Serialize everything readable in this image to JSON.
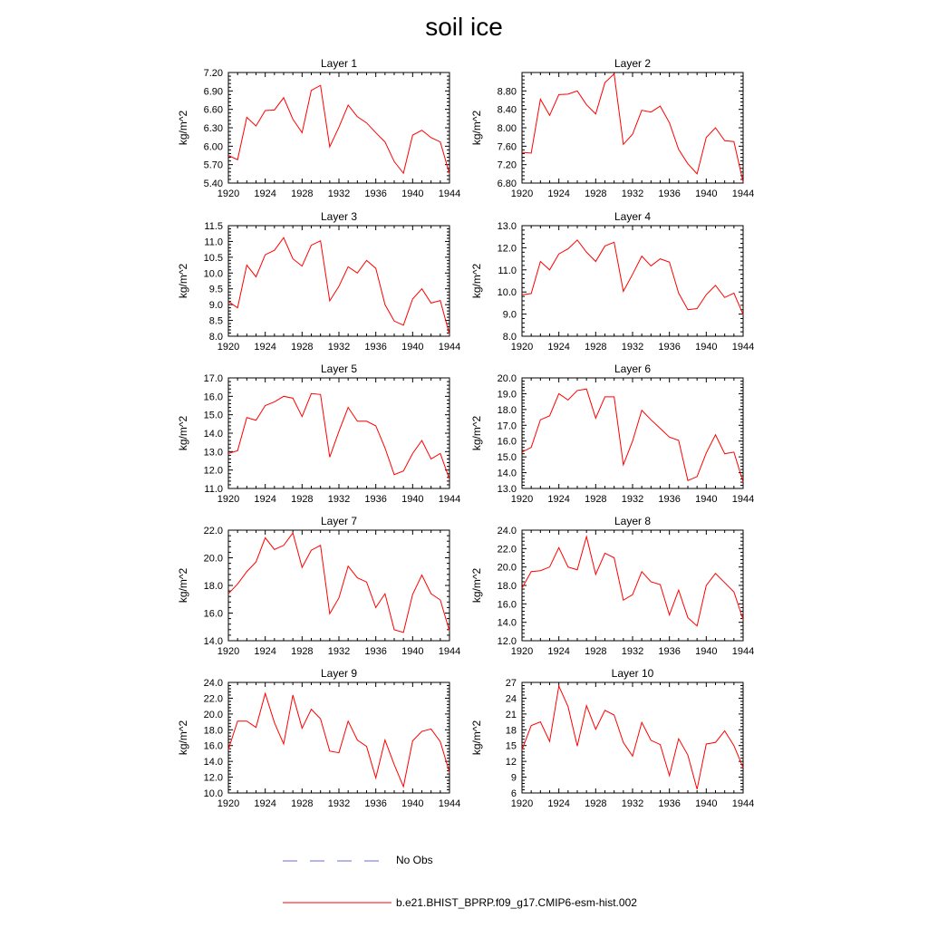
{
  "title": "soil ice",
  "legend": {
    "obs_label": "No Obs",
    "model_label": "b.e21.BHIST_BPRP.f09_g17.CMIP6-esm-hist.002",
    "obs_color": "#6b6bd6",
    "model_color": "#ff0000"
  },
  "chart_data": [
    {
      "type": "line",
      "title": "Layer 1",
      "ylabel": "kg/m^2",
      "xlim": [
        1920,
        1944
      ],
      "ylim": [
        5.4,
        7.2
      ],
      "xticks": [
        "1920",
        "1924",
        "1928",
        "1932",
        "1936",
        "1940",
        "1944"
      ],
      "yticks": [
        "5.40",
        "5.70",
        "6.00",
        "6.30",
        "6.60",
        "6.90",
        "7.20"
      ],
      "ytick_values": [
        5.4,
        5.7,
        6.0,
        6.3,
        6.6,
        6.9,
        7.2
      ],
      "series": [
        {
          "x": [
            1920,
            1921,
            1922,
            1923,
            1924,
            1925,
            1926,
            1927,
            1928,
            1929,
            1930,
            1931,
            1932,
            1933,
            1934,
            1935,
            1936,
            1937,
            1938,
            1939,
            1940,
            1941,
            1942,
            1943,
            1944
          ],
          "y": [
            5.85,
            5.78,
            6.47,
            6.33,
            6.58,
            6.59,
            6.79,
            6.44,
            6.22,
            6.91,
            6.99,
            5.99,
            6.31,
            6.67,
            6.48,
            6.38,
            6.22,
            6.07,
            5.75,
            5.56,
            6.18,
            6.26,
            6.14,
            6.07,
            5.55
          ]
        }
      ]
    },
    {
      "type": "line",
      "title": "Layer 2",
      "ylabel": "kg/m^2",
      "xlim": [
        1920,
        1944
      ],
      "ylim": [
        6.8,
        9.2
      ],
      "xticks": [
        "1920",
        "1924",
        "1928",
        "1932",
        "1936",
        "1940",
        "1944"
      ],
      "yticks": [
        "6.80",
        "7.20",
        "7.60",
        "8.00",
        "8.40",
        "8.80"
      ],
      "ytick_values": [
        6.8,
        7.2,
        7.6,
        8.0,
        8.4,
        8.8
      ],
      "series": [
        {
          "x": [
            1920,
            1921,
            1922,
            1923,
            1924,
            1925,
            1926,
            1927,
            1928,
            1929,
            1930,
            1931,
            1932,
            1933,
            1934,
            1935,
            1936,
            1937,
            1938,
            1939,
            1940,
            1941,
            1942,
            1943,
            1944
          ],
          "y": [
            7.47,
            7.45,
            8.62,
            8.27,
            8.72,
            8.73,
            8.8,
            8.5,
            8.3,
            8.98,
            9.17,
            7.64,
            7.86,
            8.38,
            8.34,
            8.47,
            8.11,
            7.53,
            7.22,
            7.0,
            7.79,
            8.0,
            7.72,
            7.7,
            6.82
          ]
        }
      ]
    },
    {
      "type": "line",
      "title": "Layer 3",
      "ylabel": "kg/m^2",
      "xlim": [
        1920,
        1944
      ],
      "ylim": [
        8.0,
        11.5
      ],
      "xticks": [
        "1920",
        "1924",
        "1928",
        "1932",
        "1936",
        "1940",
        "1944"
      ],
      "yticks": [
        "8.0",
        "8.5",
        "9.0",
        "9.5",
        "10.0",
        "10.5",
        "11.0",
        "11.5"
      ],
      "ytick_values": [
        8.0,
        8.5,
        9.0,
        9.5,
        10.0,
        10.5,
        11.0,
        11.5
      ],
      "series": [
        {
          "x": [
            1920,
            1921,
            1922,
            1923,
            1924,
            1925,
            1926,
            1927,
            1928,
            1929,
            1930,
            1931,
            1932,
            1933,
            1934,
            1935,
            1936,
            1937,
            1938,
            1939,
            1940,
            1941,
            1942,
            1943,
            1944
          ],
          "y": [
            9.1,
            8.9,
            10.25,
            9.88,
            10.58,
            10.72,
            11.12,
            10.45,
            10.22,
            10.88,
            11.02,
            9.12,
            9.58,
            10.2,
            10.0,
            10.4,
            10.15,
            9.0,
            8.48,
            8.35,
            9.18,
            9.5,
            9.05,
            9.13,
            8.05
          ]
        }
      ]
    },
    {
      "type": "line",
      "title": "Layer 4",
      "ylabel": "kg/m^2",
      "xlim": [
        1920,
        1944
      ],
      "ylim": [
        8.0,
        13.0
      ],
      "xticks": [
        "1920",
        "1924",
        "1928",
        "1932",
        "1936",
        "1940",
        "1944"
      ],
      "yticks": [
        "8.0",
        "9.0",
        "10.0",
        "11.0",
        "12.0",
        "13.0"
      ],
      "ytick_values": [
        8.0,
        9.0,
        10.0,
        11.0,
        12.0,
        13.0
      ],
      "series": [
        {
          "x": [
            1920,
            1921,
            1922,
            1923,
            1924,
            1925,
            1926,
            1927,
            1928,
            1929,
            1930,
            1931,
            1932,
            1933,
            1934,
            1935,
            1936,
            1937,
            1938,
            1939,
            1940,
            1941,
            1942,
            1943,
            1944
          ],
          "y": [
            9.87,
            9.93,
            11.38,
            11.0,
            11.72,
            11.95,
            12.35,
            11.8,
            11.38,
            12.08,
            12.25,
            10.03,
            10.8,
            11.62,
            11.18,
            11.5,
            11.35,
            9.95,
            9.2,
            9.25,
            9.88,
            10.3,
            9.75,
            9.95,
            8.98
          ]
        }
      ]
    },
    {
      "type": "line",
      "title": "Layer 5",
      "ylabel": "kg/m^2",
      "xlim": [
        1920,
        1944
      ],
      "ylim": [
        11.0,
        17.0
      ],
      "xticks": [
        "1920",
        "1924",
        "1928",
        "1932",
        "1936",
        "1940",
        "1944"
      ],
      "yticks": [
        "11.0",
        "12.0",
        "13.0",
        "14.0",
        "15.0",
        "16.0",
        "17.0"
      ],
      "ytick_values": [
        11.0,
        12.0,
        13.0,
        14.0,
        15.0,
        16.0,
        17.0
      ],
      "series": [
        {
          "x": [
            1920,
            1921,
            1922,
            1923,
            1924,
            1925,
            1926,
            1927,
            1928,
            1929,
            1930,
            1931,
            1932,
            1933,
            1934,
            1935,
            1936,
            1937,
            1938,
            1939,
            1940,
            1941,
            1942,
            1943,
            1944
          ],
          "y": [
            12.9,
            13.05,
            14.85,
            14.7,
            15.5,
            15.7,
            16.0,
            15.9,
            14.9,
            16.15,
            16.1,
            12.7,
            14.1,
            15.4,
            14.65,
            14.65,
            14.4,
            13.2,
            11.75,
            11.95,
            12.9,
            13.6,
            12.6,
            12.9,
            11.5
          ]
        }
      ]
    },
    {
      "type": "line",
      "title": "Layer 6",
      "ylabel": "kg/m^2",
      "xlim": [
        1920,
        1944
      ],
      "ylim": [
        13.0,
        20.0
      ],
      "xticks": [
        "1920",
        "1924",
        "1928",
        "1932",
        "1936",
        "1940",
        "1944"
      ],
      "yticks": [
        "13.0",
        "14.0",
        "15.0",
        "16.0",
        "17.0",
        "18.0",
        "19.0",
        "20.0"
      ],
      "ytick_values": [
        13.0,
        14.0,
        15.0,
        16.0,
        17.0,
        18.0,
        19.0,
        20.0
      ],
      "series": [
        {
          "x": [
            1920,
            1921,
            1922,
            1923,
            1924,
            1925,
            1926,
            1927,
            1928,
            1929,
            1930,
            1931,
            1932,
            1933,
            1934,
            1935,
            1936,
            1937,
            1938,
            1939,
            1940,
            1941,
            1942,
            1943,
            1944
          ],
          "y": [
            15.3,
            15.6,
            17.35,
            17.6,
            19.0,
            18.6,
            19.2,
            19.3,
            17.45,
            18.8,
            18.8,
            14.5,
            16.0,
            17.95,
            17.35,
            16.8,
            16.25,
            16.05,
            13.5,
            13.75,
            15.25,
            16.4,
            15.2,
            15.3,
            13.4
          ]
        }
      ]
    },
    {
      "type": "line",
      "title": "Layer 7",
      "ylabel": "kg/m^2",
      "xlim": [
        1920,
        1944
      ],
      "ylim": [
        14.0,
        22.0
      ],
      "xticks": [
        "1920",
        "1924",
        "1928",
        "1932",
        "1936",
        "1940",
        "1944"
      ],
      "yticks": [
        "14.0",
        "16.0",
        "18.0",
        "20.0",
        "22.0"
      ],
      "ytick_values": [
        14.0,
        16.0,
        18.0,
        20.0,
        22.0
      ],
      "series": [
        {
          "x": [
            1920,
            1921,
            1922,
            1923,
            1924,
            1925,
            1926,
            1927,
            1928,
            1929,
            1930,
            1931,
            1932,
            1933,
            1934,
            1935,
            1936,
            1937,
            1938,
            1939,
            1940,
            1941,
            1942,
            1943,
            1944
          ],
          "y": [
            17.4,
            18.1,
            19.0,
            19.7,
            21.45,
            20.6,
            20.9,
            21.8,
            19.3,
            20.55,
            20.9,
            15.95,
            17.1,
            19.4,
            18.55,
            18.25,
            16.4,
            17.4,
            14.8,
            14.6,
            17.35,
            18.75,
            17.4,
            16.95,
            14.7
          ]
        }
      ]
    },
    {
      "type": "line",
      "title": "Layer 8",
      "ylabel": "kg/m^2",
      "xlim": [
        1920,
        1944
      ],
      "ylim": [
        12.0,
        24.0
      ],
      "xticks": [
        "1920",
        "1924",
        "1928",
        "1932",
        "1936",
        "1940",
        "1944"
      ],
      "yticks": [
        "12.0",
        "14.0",
        "16.0",
        "18.0",
        "20.0",
        "22.0",
        "24.0"
      ],
      "ytick_values": [
        12.0,
        14.0,
        16.0,
        18.0,
        20.0,
        22.0,
        24.0
      ],
      "series": [
        {
          "x": [
            1920,
            1921,
            1922,
            1923,
            1924,
            1925,
            1926,
            1927,
            1928,
            1929,
            1930,
            1931,
            1932,
            1933,
            1934,
            1935,
            1936,
            1937,
            1938,
            1939,
            1940,
            1941,
            1942,
            1943,
            1944
          ],
          "y": [
            17.7,
            19.5,
            19.6,
            20.0,
            22.1,
            20.0,
            19.7,
            23.3,
            19.2,
            21.5,
            21.0,
            16.4,
            17.0,
            19.5,
            18.4,
            18.1,
            14.8,
            17.5,
            14.5,
            13.6,
            18.0,
            19.3,
            18.3,
            17.3,
            14.3
          ]
        }
      ]
    },
    {
      "type": "line",
      "title": "Layer 9",
      "ylabel": "kg/m^2",
      "xlim": [
        1920,
        1944
      ],
      "ylim": [
        10.0,
        24.0
      ],
      "xticks": [
        "1920",
        "1924",
        "1928",
        "1932",
        "1936",
        "1940",
        "1944"
      ],
      "yticks": [
        "10.0",
        "12.0",
        "14.0",
        "16.0",
        "18.0",
        "20.0",
        "22.0",
        "24.0"
      ],
      "ytick_values": [
        10.0,
        12.0,
        14.0,
        16.0,
        18.0,
        20.0,
        22.0,
        24.0
      ],
      "series": [
        {
          "x": [
            1920,
            1921,
            1922,
            1923,
            1924,
            1925,
            1926,
            1927,
            1928,
            1929,
            1930,
            1931,
            1932,
            1933,
            1934,
            1935,
            1936,
            1937,
            1938,
            1939,
            1940,
            1941,
            1942,
            1943,
            1944
          ],
          "y": [
            15.5,
            19.1,
            19.1,
            18.3,
            22.6,
            18.9,
            16.2,
            22.4,
            18.2,
            20.6,
            19.4,
            15.3,
            15.1,
            19.1,
            16.7,
            15.9,
            11.9,
            16.7,
            13.6,
            10.8,
            16.6,
            17.8,
            18.1,
            16.5,
            12.6
          ]
        }
      ]
    },
    {
      "type": "line",
      "title": "Layer 10",
      "ylabel": "kg/m^2",
      "xlim": [
        1920,
        1944
      ],
      "ylim": [
        6,
        27
      ],
      "xticks": [
        "1920",
        "1924",
        "1928",
        "1932",
        "1936",
        "1940",
        "1944"
      ],
      "yticks": [
        "6",
        "9",
        "12",
        "15",
        "18",
        "21",
        "24",
        "27"
      ],
      "ytick_values": [
        6,
        9,
        12,
        15,
        18,
        21,
        24,
        27
      ],
      "series": [
        {
          "x": [
            1920,
            1921,
            1922,
            1923,
            1924,
            1925,
            1926,
            1927,
            1928,
            1929,
            1930,
            1931,
            1932,
            1933,
            1934,
            1935,
            1936,
            1937,
            1938,
            1939,
            1940,
            1941,
            1942,
            1943,
            1944
          ],
          "y": [
            14.2,
            18.8,
            19.5,
            15.8,
            26.3,
            22.4,
            14.9,
            22.6,
            18.1,
            21.7,
            20.8,
            15.6,
            13.0,
            19.4,
            16.0,
            15.2,
            9.3,
            16.3,
            13.2,
            6.7,
            15.3,
            15.6,
            17.8,
            15.0,
            10.8
          ]
        }
      ]
    }
  ]
}
